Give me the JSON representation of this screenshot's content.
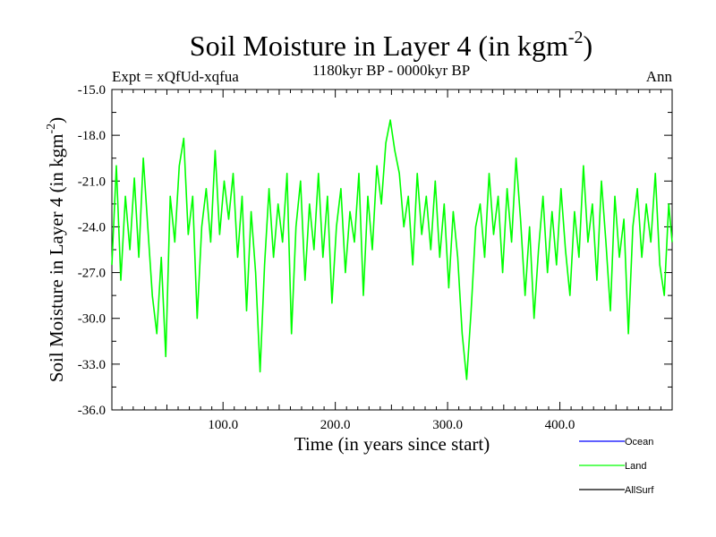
{
  "header": {
    "title": "Soil Moisture in Layer 4 (in kgm",
    "title_sup": "-2",
    "title_close": ")",
    "expt": "Expt = xQfUd-xqfua",
    "period": "1180kyr BP - 0000kyr BP",
    "season": "Ann"
  },
  "chart_data": {
    "type": "line",
    "title": "Soil Moisture in Layer 4 (in kgm-2)",
    "xlabel": "Time (in years since start)",
    "ylabel": "Soil Moisture in Layer 4 (in kgm-2)",
    "ylabel_main": "Soil Moisture in Layer 4 (in kgm",
    "ylabel_sup": "-2",
    "ylabel_close": ")",
    "xlim": [
      1,
      500
    ],
    "ylim": [
      -36.0,
      -15.0
    ],
    "xticks": [
      100,
      200,
      300,
      400
    ],
    "xtick_labels": [
      "100.0",
      "200.0",
      "300.0",
      "400.0"
    ],
    "yticks": [
      -15,
      -18,
      -21,
      -24,
      -27,
      -30,
      -33,
      -36
    ],
    "ytick_labels": [
      "-15.0",
      "-18.0",
      "-21.0",
      "-24.0",
      "-27.0",
      "-30.0",
      "-33.0",
      "-36.0"
    ],
    "legend": [
      "Ocean",
      "Land",
      "AllSurf"
    ],
    "legend_colors": [
      "#0000ff",
      "#00ff00",
      "#000000"
    ],
    "series": [
      {
        "name": "Land",
        "color": "#00ff00",
        "x": [
          1,
          5,
          9,
          13,
          17,
          21,
          25,
          29,
          33,
          37,
          41,
          45,
          49,
          53,
          57,
          61,
          65,
          69,
          73,
          77,
          81,
          85,
          89,
          93,
          97,
          101,
          105,
          109,
          113,
          117,
          121,
          125,
          129,
          133,
          137,
          141,
          145,
          149,
          153,
          157,
          161,
          165,
          169,
          173,
          177,
          181,
          185,
          189,
          193,
          197,
          201,
          205,
          209,
          213,
          217,
          221,
          225,
          229,
          233,
          237,
          241,
          245,
          249,
          253,
          257,
          261,
          265,
          269,
          273,
          277,
          281,
          285,
          289,
          293,
          297,
          301,
          305,
          309,
          313,
          317,
          321,
          325,
          329,
          333,
          337,
          341,
          345,
          349,
          353,
          357,
          361,
          365,
          369,
          373,
          377,
          381,
          385,
          389,
          393,
          397,
          401,
          405,
          409,
          413,
          417,
          421,
          425,
          429,
          433,
          437,
          441,
          445,
          449,
          453,
          457,
          461,
          465,
          469,
          473,
          477,
          481,
          485,
          489,
          493,
          497,
          500
        ],
        "values": [
          -26.5,
          -20.0,
          -27.5,
          -22.0,
          -25.5,
          -20.8,
          -26.0,
          -19.5,
          -24.0,
          -28.5,
          -31.0,
          -26.0,
          -32.5,
          -22.0,
          -25.0,
          -20.0,
          -18.2,
          -24.5,
          -22.0,
          -30.0,
          -24.0,
          -21.5,
          -25.0,
          -19.0,
          -24.5,
          -21.0,
          -23.5,
          -20.5,
          -26.0,
          -22.0,
          -29.5,
          -23.0,
          -27.0,
          -33.5,
          -26.5,
          -21.5,
          -26.0,
          -22.5,
          -25.0,
          -20.5,
          -31.0,
          -24.0,
          -21.0,
          -27.5,
          -22.5,
          -25.5,
          -20.5,
          -26.0,
          -22.0,
          -29.0,
          -24.0,
          -21.5,
          -27.0,
          -23.0,
          -25.0,
          -20.5,
          -28.5,
          -22.0,
          -25.5,
          -20.0,
          -22.5,
          -18.5,
          -17.0,
          -19.0,
          -20.5,
          -24.0,
          -22.0,
          -26.5,
          -20.5,
          -24.5,
          -22.0,
          -25.5,
          -21.0,
          -26.0,
          -22.5,
          -28.0,
          -23.0,
          -26.0,
          -31.0,
          -34.0,
          -29.5,
          -24.0,
          -22.5,
          -26.0,
          -20.5,
          -24.5,
          -22.0,
          -27.0,
          -21.5,
          -25.0,
          -19.5,
          -23.5,
          -28.5,
          -24.0,
          -30.0,
          -25.5,
          -22.0,
          -27.0,
          -23.0,
          -26.5,
          -21.5,
          -25.5,
          -28.5,
          -23.0,
          -26.0,
          -20.0,
          -25.0,
          -22.5,
          -27.5,
          -21.0,
          -25.0,
          -29.5,
          -22.0,
          -26.0,
          -23.5,
          -31.0,
          -24.0,
          -21.5,
          -26.0,
          -22.5,
          -25.0,
          -20.5,
          -26.5,
          -28.5,
          -22.5,
          -25.0
        ]
      }
    ]
  }
}
